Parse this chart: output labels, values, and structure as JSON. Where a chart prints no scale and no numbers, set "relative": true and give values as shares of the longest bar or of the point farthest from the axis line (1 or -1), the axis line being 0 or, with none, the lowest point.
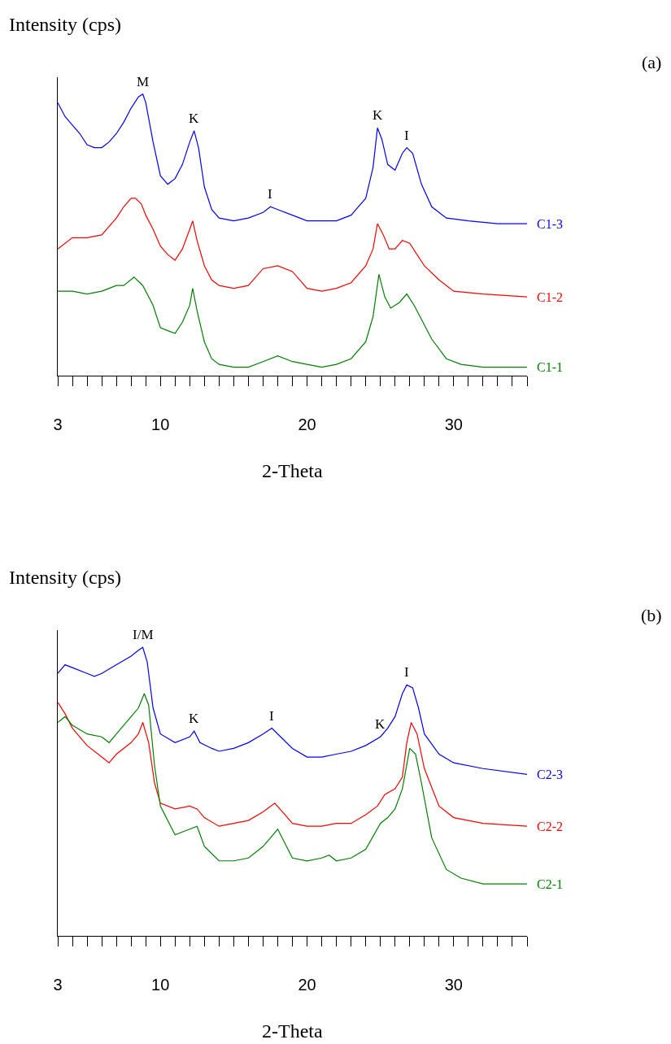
{
  "chart_data": [
    {
      "type": "line",
      "relative": true,
      "xlabel": "2-Theta",
      "ylabel": "Intensity (cps)",
      "tick_labels": "x",
      "grid": false,
      "xlim": [
        3,
        35
      ],
      "xticks": [
        3,
        {
          "value": 4,
          "label": null
        },
        {
          "value": 5,
          "label": null
        },
        {
          "value": 6,
          "label": null
        },
        {
          "value": 7,
          "label": null
        },
        {
          "value": 8,
          "label": null
        },
        {
          "value": 9,
          "label": null
        },
        10,
        {
          "value": 11,
          "label": null
        },
        {
          "value": 12,
          "label": null
        },
        {
          "value": 13,
          "label": null
        },
        {
          "value": 14,
          "label": null
        },
        {
          "value": 15,
          "label": null
        },
        {
          "value": 16,
          "label": null
        },
        {
          "value": 17,
          "label": null
        },
        {
          "value": 18,
          "label": null
        },
        {
          "value": 19,
          "label": null
        },
        20,
        {
          "value": 21,
          "label": null
        },
        {
          "value": 22,
          "label": null
        },
        {
          "value": 23,
          "label": null
        },
        {
          "value": 24,
          "label": null
        },
        {
          "value": 25,
          "label": null
        },
        {
          "value": 26,
          "label": null
        },
        {
          "value": 27,
          "label": null
        },
        {
          "value": 28,
          "label": null
        },
        {
          "value": 29,
          "label": null
        },
        30,
        {
          "value": 31,
          "label": null
        },
        {
          "value": 32,
          "label": null
        },
        {
          "value": 33,
          "label": null
        },
        {
          "value": 34,
          "label": null
        },
        {
          "value": 35,
          "label": null
        }
      ],
      "annotations": [
        "(a)",
        {
          "text": "M",
          "x": 8.8,
          "y": 1.0
        },
        {
          "text": "K",
          "x": 12.3,
          "y": 0.87
        },
        {
          "text": "I",
          "x": 17.5,
          "y": 0.6
        },
        {
          "text": "K",
          "x": 24.8,
          "y": 0.88
        },
        {
          "text": "I",
          "x": 26.8,
          "y": 0.81
        }
      ],
      "series": [
        {
          "name": "C1-3",
          "color": "#0000ff",
          "x": [
            3,
            3.5,
            4,
            4.5,
            5,
            5.5,
            6,
            6.5,
            7,
            7.5,
            8,
            8.5,
            8.8,
            9,
            9.5,
            10,
            10.5,
            11,
            11.5,
            12,
            12.3,
            12.6,
            13,
            13.5,
            14,
            15,
            16,
            17,
            17.5,
            18,
            19,
            20,
            21,
            22,
            23,
            24,
            24.5,
            24.8,
            25.1,
            25.5,
            26,
            26.5,
            26.8,
            27.2,
            27.8,
            28.5,
            29.5,
            31,
            33,
            35
          ],
          "values": [
            0.97,
            0.92,
            0.89,
            0.86,
            0.82,
            0.81,
            0.81,
            0.83,
            0.86,
            0.9,
            0.95,
            0.99,
            1.0,
            0.97,
            0.83,
            0.71,
            0.68,
            0.7,
            0.75,
            0.83,
            0.87,
            0.81,
            0.67,
            0.59,
            0.56,
            0.55,
            0.56,
            0.58,
            0.6,
            0.59,
            0.57,
            0.55,
            0.55,
            0.55,
            0.57,
            0.63,
            0.74,
            0.88,
            0.84,
            0.75,
            0.73,
            0.79,
            0.81,
            0.79,
            0.68,
            0.6,
            0.56,
            0.55,
            0.54,
            0.54
          ]
        },
        {
          "name": "C1-2",
          "color": "#ff0000",
          "x": [
            3,
            4,
            5,
            6,
            7,
            7.5,
            8,
            8.3,
            8.7,
            9,
            9.5,
            10,
            10.5,
            11,
            11.5,
            12,
            12.2,
            12.5,
            13,
            13.5,
            14,
            15,
            16,
            17,
            18,
            19,
            20,
            21,
            22,
            23,
            24,
            24.5,
            24.8,
            25.2,
            25.6,
            26,
            26.5,
            27,
            27.5,
            28,
            29,
            30,
            32,
            35
          ],
          "values": [
            0.45,
            0.49,
            0.49,
            0.5,
            0.56,
            0.6,
            0.63,
            0.63,
            0.61,
            0.57,
            0.52,
            0.46,
            0.43,
            0.41,
            0.45,
            0.52,
            0.55,
            0.48,
            0.39,
            0.34,
            0.32,
            0.31,
            0.32,
            0.38,
            0.39,
            0.37,
            0.31,
            0.3,
            0.31,
            0.33,
            0.39,
            0.45,
            0.54,
            0.5,
            0.45,
            0.45,
            0.48,
            0.47,
            0.43,
            0.39,
            0.34,
            0.3,
            0.29,
            0.28
          ]
        },
        {
          "name": "C1-1",
          "color": "#008000",
          "x": [
            3,
            4,
            5,
            6,
            6.5,
            7,
            7.5,
            8.2,
            8.8,
            9.5,
            10,
            10.5,
            11,
            11.5,
            12,
            12.2,
            12.5,
            13,
            13.5,
            14,
            15,
            16,
            17,
            18,
            19,
            20,
            21,
            22,
            23,
            24,
            24.5,
            24.9,
            25.3,
            25.7,
            26.3,
            26.8,
            27.3,
            27.8,
            28.5,
            29.5,
            30.5,
            32,
            35
          ],
          "values": [
            0.3,
            0.3,
            0.29,
            0.3,
            0.31,
            0.32,
            0.32,
            0.35,
            0.32,
            0.25,
            0.17,
            0.16,
            0.15,
            0.19,
            0.25,
            0.31,
            0.23,
            0.12,
            0.06,
            0.04,
            0.03,
            0.03,
            0.05,
            0.07,
            0.05,
            0.04,
            0.03,
            0.04,
            0.06,
            0.12,
            0.21,
            0.36,
            0.28,
            0.24,
            0.26,
            0.29,
            0.25,
            0.2,
            0.13,
            0.06,
            0.04,
            0.03,
            0.03
          ]
        }
      ]
    },
    {
      "type": "line",
      "relative": true,
      "xlabel": "2-Theta",
      "ylabel": "Intensity (cps)",
      "tick_labels": "x",
      "grid": false,
      "xlim": [
        3,
        35
      ],
      "xticks": [
        3,
        {
          "value": 4,
          "label": null
        },
        {
          "value": 5,
          "label": null
        },
        {
          "value": 6,
          "label": null
        },
        {
          "value": 7,
          "label": null
        },
        {
          "value": 8,
          "label": null
        },
        {
          "value": 9,
          "label": null
        },
        10,
        {
          "value": 11,
          "label": null
        },
        {
          "value": 12,
          "label": null
        },
        {
          "value": 13,
          "label": null
        },
        {
          "value": 14,
          "label": null
        },
        {
          "value": 15,
          "label": null
        },
        {
          "value": 16,
          "label": null
        },
        {
          "value": 17,
          "label": null
        },
        {
          "value": 18,
          "label": null
        },
        {
          "value": 19,
          "label": null
        },
        20,
        {
          "value": 21,
          "label": null
        },
        {
          "value": 22,
          "label": null
        },
        {
          "value": 23,
          "label": null
        },
        {
          "value": 24,
          "label": null
        },
        {
          "value": 25,
          "label": null
        },
        {
          "value": 26,
          "label": null
        },
        {
          "value": 27,
          "label": null
        },
        {
          "value": 28,
          "label": null
        },
        {
          "value": 29,
          "label": null
        },
        30,
        {
          "value": 31,
          "label": null
        },
        {
          "value": 32,
          "label": null
        },
        {
          "value": 33,
          "label": null
        },
        {
          "value": 34,
          "label": null
        },
        {
          "value": 35,
          "label": null
        }
      ],
      "annotations": [
        "(b)",
        {
          "text": "I/M",
          "x": 8.8,
          "y": 1.0
        },
        {
          "text": "K",
          "x": 12.3,
          "y": 0.71
        },
        {
          "text": "I",
          "x": 17.6,
          "y": 0.72
        },
        {
          "text": "K",
          "x": 25,
          "y": 0.69
        },
        {
          "text": "I",
          "x": 26.8,
          "y": 0.87
        }
      ],
      "series": [
        {
          "name": "C2-3",
          "color": "#0000ff",
          "x": [
            3,
            3.5,
            4,
            5,
            5.5,
            6,
            7,
            8,
            8.5,
            8.8,
            9.1,
            9.5,
            10,
            11,
            12,
            12.3,
            12.7,
            13.5,
            14,
            15,
            16,
            17,
            17.6,
            18.2,
            19,
            20,
            21,
            22,
            23,
            24,
            25,
            25.5,
            26,
            26.5,
            26.8,
            27.2,
            27.6,
            28,
            29,
            30,
            32,
            35
          ],
          "values": [
            0.91,
            0.94,
            0.93,
            0.91,
            0.9,
            0.91,
            0.94,
            0.97,
            0.99,
            1.0,
            0.95,
            0.79,
            0.7,
            0.67,
            0.69,
            0.71,
            0.67,
            0.65,
            0.64,
            0.65,
            0.67,
            0.7,
            0.72,
            0.69,
            0.65,
            0.62,
            0.62,
            0.63,
            0.64,
            0.66,
            0.69,
            0.72,
            0.76,
            0.84,
            0.87,
            0.86,
            0.79,
            0.7,
            0.63,
            0.6,
            0.58,
            0.56
          ]
        },
        {
          "name": "C2-2",
          "color": "#ff0000",
          "x": [
            3,
            3.5,
            4,
            5,
            6,
            6.5,
            7,
            8,
            8.5,
            8.8,
            9.2,
            9.6,
            10,
            11,
            12,
            12.5,
            13,
            14,
            15,
            16,
            17,
            17.8,
            18.5,
            19,
            20,
            21,
            22,
            23,
            24,
            24.8,
            25.3,
            26,
            26.5,
            26.8,
            27.1,
            27.5,
            28,
            29,
            30,
            32,
            35
          ],
          "values": [
            0.81,
            0.77,
            0.72,
            0.66,
            0.62,
            0.6,
            0.63,
            0.67,
            0.7,
            0.74,
            0.67,
            0.53,
            0.46,
            0.44,
            0.45,
            0.44,
            0.41,
            0.38,
            0.39,
            0.4,
            0.43,
            0.46,
            0.42,
            0.39,
            0.38,
            0.38,
            0.39,
            0.39,
            0.42,
            0.45,
            0.49,
            0.51,
            0.55,
            0.67,
            0.74,
            0.7,
            0.58,
            0.45,
            0.41,
            0.39,
            0.38
          ]
        },
        {
          "name": "C2-1",
          "color": "#008000",
          "x": [
            3,
            3.5,
            4,
            5,
            6,
            6.5,
            7,
            8,
            8.5,
            8.9,
            9.2,
            9.6,
            10,
            11,
            12,
            12.5,
            13,
            14,
            15,
            16,
            17,
            18,
            18.6,
            19,
            20,
            21,
            21.5,
            22,
            23,
            24,
            25,
            25.5,
            26,
            26.5,
            27,
            27.4,
            27.8,
            28.5,
            29.5,
            30.5,
            32,
            35
          ],
          "values": [
            0.74,
            0.76,
            0.73,
            0.7,
            0.69,
            0.67,
            0.7,
            0.76,
            0.79,
            0.84,
            0.8,
            0.59,
            0.45,
            0.35,
            0.37,
            0.38,
            0.31,
            0.26,
            0.26,
            0.27,
            0.31,
            0.37,
            0.31,
            0.27,
            0.26,
            0.27,
            0.28,
            0.26,
            0.27,
            0.3,
            0.39,
            0.41,
            0.44,
            0.51,
            0.65,
            0.63,
            0.53,
            0.34,
            0.23,
            0.2,
            0.18,
            0.18
          ]
        }
      ]
    }
  ]
}
